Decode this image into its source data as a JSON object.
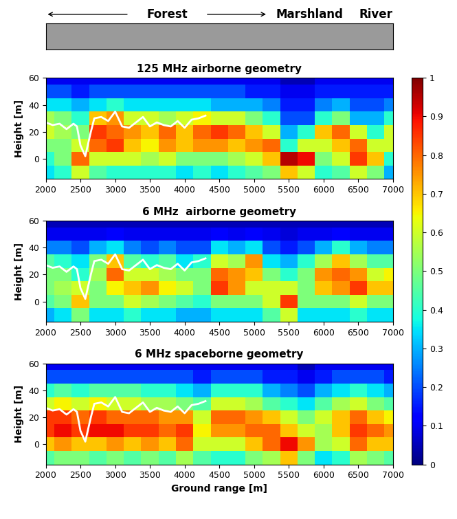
{
  "header": {
    "labels": [
      "Forest",
      "Marshland",
      "River"
    ]
  },
  "colorbar": {
    "range": [
      0,
      1
    ],
    "ticks": [
      0,
      0.1,
      0.2,
      0.3,
      0.4,
      0.5,
      0.6,
      0.7,
      0.8,
      0.9,
      1
    ]
  },
  "chart_data": [
    {
      "type": "heatmap",
      "title": "125 MHz airborne geometry",
      "ylabel": "Height [m]",
      "xlim": [
        2000,
        7000
      ],
      "ylim": [
        -15,
        60
      ],
      "xticks": [
        2000,
        2500,
        3000,
        3500,
        4000,
        4500,
        5000,
        5500,
        6000,
        6500,
        7000
      ],
      "yticks": [
        0,
        20,
        40,
        60
      ],
      "x": [
        2000,
        2250,
        2500,
        2750,
        3000,
        3250,
        3500,
        3750,
        4000,
        4250,
        4500,
        4750,
        5000,
        5250,
        5500,
        5750,
        6000,
        6250,
        6500,
        6750,
        7000
      ],
      "heights": [
        -10,
        0,
        10,
        20,
        30,
        40,
        50,
        60
      ],
      "cells": [
        [
          0.35,
          0.4,
          0.6,
          0.45,
          0.4,
          0.4,
          0.4,
          0.4,
          0.35,
          0.4,
          0.35,
          0.4,
          0.45,
          0.5,
          0.7,
          0.6,
          0.4,
          0.45,
          0.6,
          0.5,
          0.3
        ],
        [
          0.4,
          0.5,
          0.8,
          0.6,
          0.6,
          0.6,
          0.55,
          0.6,
          0.5,
          0.5,
          0.5,
          0.55,
          0.6,
          0.7,
          0.95,
          0.9,
          0.5,
          0.6,
          0.85,
          0.7,
          0.4
        ],
        [
          0.5,
          0.5,
          0.6,
          0.8,
          0.85,
          0.7,
          0.65,
          0.75,
          0.7,
          0.75,
          0.75,
          0.7,
          0.75,
          0.8,
          0.4,
          0.6,
          0.6,
          0.7,
          0.8,
          0.6,
          0.6
        ],
        [
          0.6,
          0.55,
          0.5,
          0.85,
          0.8,
          0.75,
          0.7,
          0.8,
          0.7,
          0.8,
          0.85,
          0.8,
          0.7,
          0.6,
          0.3,
          0.4,
          0.7,
          0.8,
          0.6,
          0.4,
          0.6
        ],
        [
          0.55,
          0.5,
          0.4,
          0.7,
          0.75,
          0.6,
          0.6,
          0.55,
          0.6,
          0.65,
          0.6,
          0.6,
          0.5,
          0.4,
          0.2,
          0.2,
          0.4,
          0.5,
          0.3,
          0.3,
          0.4
        ],
        [
          0.35,
          0.35,
          0.3,
          0.35,
          0.4,
          0.35,
          0.35,
          0.35,
          0.35,
          0.35,
          0.3,
          0.3,
          0.3,
          0.25,
          0.15,
          0.15,
          0.25,
          0.3,
          0.2,
          0.2,
          0.25
        ],
        [
          0.2,
          0.2,
          0.15,
          0.2,
          0.2,
          0.2,
          0.2,
          0.2,
          0.2,
          0.2,
          0.2,
          0.2,
          0.15,
          0.15,
          0.1,
          0.1,
          0.15,
          0.15,
          0.15,
          0.15,
          0.15
        ],
        [
          0.1,
          0.1,
          0.1,
          0.1,
          0.1,
          0.1,
          0.1,
          0.1,
          0.1,
          0.1,
          0.1,
          0.1,
          0.1,
          0.1,
          0.05,
          0.05,
          0.1,
          0.1,
          0.1,
          0.1,
          0.1
        ]
      ],
      "line": {
        "color": "white",
        "x": [
          2000,
          2100,
          2200,
          2300,
          2400,
          2450,
          2500,
          2570,
          2650,
          2700,
          2800,
          2900,
          3000,
          3100,
          3200,
          3300,
          3400,
          3500,
          3600,
          3700,
          3800,
          3900,
          4000,
          4100,
          4200,
          4300
        ],
        "values": [
          27,
          25,
          26,
          22,
          26,
          24,
          10,
          2,
          20,
          30,
          31,
          28,
          35,
          24,
          23,
          27,
          31,
          24,
          27,
          25,
          24,
          28,
          23,
          29,
          30,
          32
        ]
      }
    },
    {
      "type": "heatmap",
      "title": "6 MHz  airborne geometry",
      "ylabel": "Height [m]",
      "xlim": [
        2000,
        7000
      ],
      "ylim": [
        -15,
        60
      ],
      "xticks": [
        2000,
        2500,
        3000,
        3500,
        4000,
        4500,
        5000,
        5500,
        6000,
        6500,
        7000
      ],
      "yticks": [
        0,
        20,
        40,
        60
      ],
      "x": [
        2000,
        2250,
        2500,
        2750,
        3000,
        3250,
        3500,
        3750,
        4000,
        4250,
        4500,
        4750,
        5000,
        5250,
        5500,
        5750,
        6000,
        6250,
        6500,
        6750,
        7000
      ],
      "heights": [
        -10,
        0,
        10,
        20,
        30,
        40,
        50,
        60
      ],
      "cells": [
        [
          0.3,
          0.35,
          0.5,
          0.35,
          0.35,
          0.4,
          0.35,
          0.35,
          0.3,
          0.3,
          0.35,
          0.35,
          0.35,
          0.45,
          0.6,
          0.35,
          0.35,
          0.35,
          0.4,
          0.35,
          0.35
        ],
        [
          0.45,
          0.5,
          0.7,
          0.5,
          0.5,
          0.6,
          0.55,
          0.5,
          0.45,
          0.4,
          0.5,
          0.5,
          0.5,
          0.6,
          0.85,
          0.5,
          0.5,
          0.5,
          0.6,
          0.5,
          0.5
        ],
        [
          0.5,
          0.55,
          0.6,
          0.5,
          0.65,
          0.7,
          0.75,
          0.65,
          0.6,
          0.5,
          0.85,
          0.75,
          0.6,
          0.6,
          0.6,
          0.5,
          0.7,
          0.75,
          0.85,
          0.7,
          0.7
        ],
        [
          0.5,
          0.5,
          0.4,
          0.55,
          0.8,
          0.6,
          0.6,
          0.55,
          0.5,
          0.5,
          0.8,
          0.75,
          0.7,
          0.5,
          0.4,
          0.5,
          0.75,
          0.8,
          0.75,
          0.6,
          0.65
        ],
        [
          0.45,
          0.4,
          0.35,
          0.5,
          0.7,
          0.45,
          0.4,
          0.45,
          0.35,
          0.4,
          0.6,
          0.55,
          0.75,
          0.35,
          0.3,
          0.4,
          0.55,
          0.7,
          0.55,
          0.45,
          0.45
        ],
        [
          0.25,
          0.25,
          0.2,
          0.3,
          0.35,
          0.25,
          0.2,
          0.25,
          0.2,
          0.2,
          0.35,
          0.3,
          0.35,
          0.2,
          0.15,
          0.2,
          0.3,
          0.4,
          0.3,
          0.25,
          0.25
        ],
        [
          0.1,
          0.1,
          0.1,
          0.1,
          0.12,
          0.1,
          0.1,
          0.1,
          0.1,
          0.1,
          0.12,
          0.1,
          0.12,
          0.1,
          0.08,
          0.1,
          0.1,
          0.12,
          0.1,
          0.1,
          0.1
        ],
        [
          0.05,
          0.05,
          0.05,
          0.05,
          0.05,
          0.05,
          0.05,
          0.05,
          0.05,
          0.05,
          0.05,
          0.05,
          0.05,
          0.05,
          0.05,
          0.05,
          0.05,
          0.05,
          0.05,
          0.05,
          0.05
        ]
      ],
      "line": {
        "color": "white",
        "x": [
          2000,
          2100,
          2200,
          2300,
          2400,
          2450,
          2500,
          2570,
          2650,
          2700,
          2800,
          2900,
          3000,
          3100,
          3200,
          3300,
          3400,
          3500,
          3600,
          3700,
          3800,
          3900,
          4000,
          4100,
          4200,
          4300
        ],
        "values": [
          27,
          25,
          26,
          22,
          26,
          24,
          10,
          2,
          20,
          30,
          31,
          28,
          35,
          24,
          23,
          27,
          31,
          24,
          27,
          25,
          24,
          28,
          23,
          29,
          30,
          32
        ]
      }
    },
    {
      "type": "heatmap",
      "title": "6 MHz spaceborne geometry",
      "ylabel": "Height [m]",
      "xlabel": "Ground range [m]",
      "xlim": [
        2000,
        7000
      ],
      "ylim": [
        -15,
        60
      ],
      "xticks": [
        2000,
        2500,
        3000,
        3500,
        4000,
        4500,
        5000,
        5500,
        6000,
        6500,
        7000
      ],
      "yticks": [
        0,
        20,
        40,
        60
      ],
      "x": [
        2000,
        2250,
        2500,
        2750,
        3000,
        3250,
        3500,
        3750,
        4000,
        4250,
        4500,
        4750,
        5000,
        5250,
        5500,
        5750,
        6000,
        6250,
        6500,
        6750,
        7000
      ],
      "heights": [
        -10,
        0,
        10,
        20,
        30,
        40,
        50,
        60
      ],
      "cells": [
        [
          0.45,
          0.5,
          0.5,
          0.45,
          0.5,
          0.45,
          0.5,
          0.45,
          0.55,
          0.45,
          0.4,
          0.4,
          0.5,
          0.55,
          0.7,
          0.5,
          0.35,
          0.4,
          0.55,
          0.5,
          0.45
        ],
        [
          0.7,
          0.75,
          0.7,
          0.7,
          0.75,
          0.7,
          0.75,
          0.7,
          0.8,
          0.6,
          0.6,
          0.6,
          0.7,
          0.8,
          0.9,
          0.75,
          0.55,
          0.6,
          0.8,
          0.7,
          0.7
        ],
        [
          0.85,
          0.9,
          0.85,
          0.9,
          0.9,
          0.85,
          0.85,
          0.8,
          0.85,
          0.65,
          0.75,
          0.75,
          0.8,
          0.8,
          0.7,
          0.6,
          0.55,
          0.7,
          0.85,
          0.8,
          0.75
        ],
        [
          0.85,
          0.85,
          0.8,
          0.85,
          0.8,
          0.8,
          0.8,
          0.75,
          0.75,
          0.6,
          0.8,
          0.8,
          0.75,
          0.7,
          0.6,
          0.5,
          0.6,
          0.7,
          0.8,
          0.7,
          0.65
        ],
        [
          0.6,
          0.65,
          0.6,
          0.65,
          0.6,
          0.6,
          0.55,
          0.55,
          0.5,
          0.45,
          0.6,
          0.6,
          0.55,
          0.45,
          0.4,
          0.35,
          0.45,
          0.55,
          0.6,
          0.5,
          0.45
        ],
        [
          0.4,
          0.45,
          0.4,
          0.45,
          0.45,
          0.45,
          0.4,
          0.4,
          0.35,
          0.3,
          0.4,
          0.4,
          0.4,
          0.3,
          0.25,
          0.2,
          0.3,
          0.35,
          0.4,
          0.35,
          0.3
        ],
        [
          0.2,
          0.2,
          0.2,
          0.2,
          0.2,
          0.2,
          0.2,
          0.2,
          0.2,
          0.15,
          0.2,
          0.2,
          0.2,
          0.15,
          0.15,
          0.1,
          0.15,
          0.2,
          0.2,
          0.2,
          0.15
        ],
        [
          0.1,
          0.1,
          0.1,
          0.1,
          0.1,
          0.1,
          0.1,
          0.1,
          0.1,
          0.1,
          0.1,
          0.1,
          0.1,
          0.1,
          0.1,
          0.05,
          0.1,
          0.1,
          0.1,
          0.1,
          0.1
        ]
      ],
      "line": {
        "color": "white",
        "x": [
          2000,
          2100,
          2200,
          2300,
          2400,
          2450,
          2500,
          2570,
          2650,
          2700,
          2800,
          2900,
          3000,
          3100,
          3200,
          3300,
          3400,
          3500,
          3600,
          3700,
          3800,
          3900,
          4000,
          4100,
          4200,
          4300
        ],
        "values": [
          27,
          25,
          26,
          22,
          26,
          24,
          10,
          2,
          20,
          30,
          31,
          28,
          35,
          24,
          23,
          27,
          31,
          24,
          27,
          25,
          24,
          28,
          23,
          29,
          30,
          32
        ]
      }
    }
  ]
}
